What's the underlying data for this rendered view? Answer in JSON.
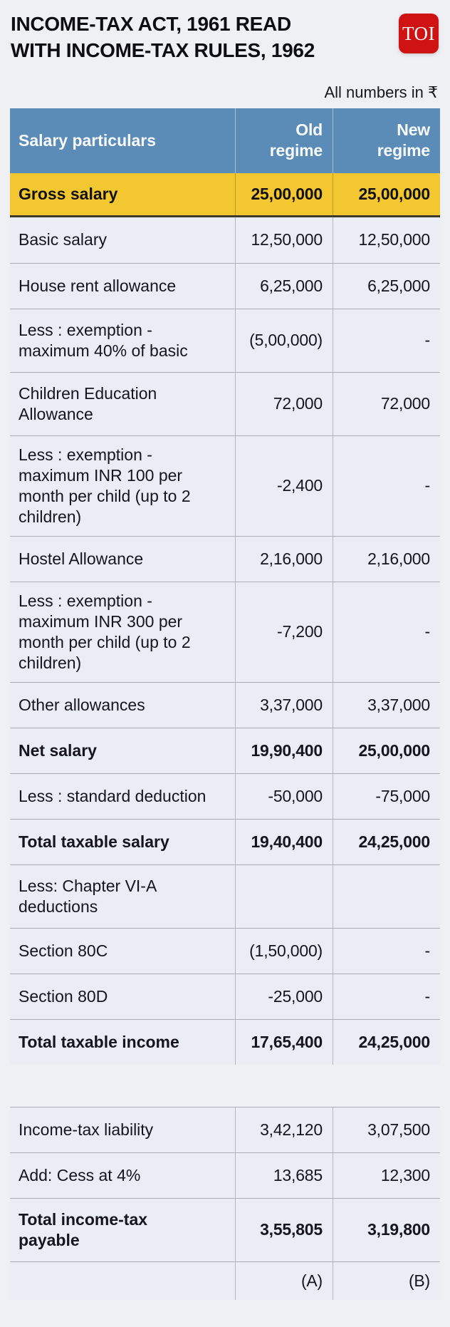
{
  "page": {
    "title": "INCOME-TAX ACT, 1961 READ\nWITH INCOME-TAX RULES, 1962",
    "note": "All numbers in ₹",
    "logo_text": "TOI"
  },
  "colors": {
    "header_blue": "#5a8cb7",
    "highlight_yellow": "#f2c72f",
    "logo_red": "#ce1312",
    "row_background": "#ebedf4",
    "text": "#15151b"
  },
  "chart_data": {
    "type": "table",
    "title": "INCOME-TAX ACT, 1961 READ WITH INCOME-TAX RULES, 1962",
    "unit_note": "All numbers in ₹",
    "columns": [
      "Salary particulars",
      "Old regime",
      "New regime"
    ],
    "rows": [
      {
        "label": "Gross salary",
        "old": "25,00,000",
        "new": "25,00,000"
      },
      {
        "label": "Basic salary",
        "old": "12,50,000",
        "new": "12,50,000"
      },
      {
        "label": "House rent allowance",
        "old": "6,25,000",
        "new": "6,25,000"
      },
      {
        "label": "Less : exemption -\nmaximum 40% of basic",
        "old": "(5,00,000)",
        "new": "-"
      },
      {
        "label": "Children Education\nAllowance",
        "old": "72,000",
        "new": "72,000"
      },
      {
        "label": "Less : exemption -\nmaximum INR 100 per\nmonth per child (up to 2\nchildren)",
        "old": "-2,400",
        "new": "-"
      },
      {
        "label": "Hostel Allowance",
        "old": "2,16,000",
        "new": "2,16,000"
      },
      {
        "label": "Less : exemption -\nmaximum INR 300 per\nmonth per child (up to 2\nchildren)",
        "old": "-7,200",
        "new": "-"
      },
      {
        "label": "Other allowances",
        "old": "3,37,000",
        "new": "3,37,000"
      },
      {
        "label": "Net salary",
        "old": "19,90,400",
        "new": "25,00,000"
      },
      {
        "label": "Less : standard deduction",
        "old": "-50,000",
        "new": "-75,000"
      },
      {
        "label": "Total taxable salary",
        "old": "19,40,400",
        "new": "24,25,000"
      },
      {
        "label": "Less: Chapter VI-A\ndeductions",
        "old": "",
        "new": ""
      },
      {
        "label": "Section 80C",
        "old": "(1,50,000)",
        "new": "-"
      },
      {
        "label": "Section 80D",
        "old": "-25,000",
        "new": "-"
      },
      {
        "label": "Total taxable income",
        "old": "17,65,400",
        "new": "24,25,000"
      },
      {
        "label": "Income-tax liability",
        "old": "3,42,120",
        "new": "3,07,500"
      },
      {
        "label": "Add: Cess at 4%",
        "old": "13,685",
        "new": "12,300"
      },
      {
        "label": "Total income-tax\npayable",
        "old": "3,55,805",
        "new": "3,19,800"
      },
      {
        "label": "",
        "old": "(A)",
        "new": "(B)"
      }
    ]
  }
}
